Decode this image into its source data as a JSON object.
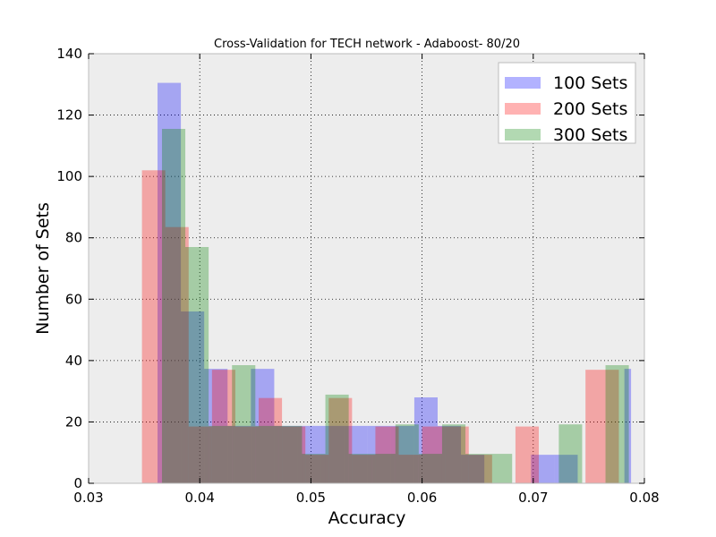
{
  "chart_data": {
    "type": "bar",
    "title": "Cross-Validation for TECH network - Adaboost- 80/20",
    "xlabel": "Accuracy",
    "ylabel": "Number of Sets",
    "xlim": [
      0.03,
      0.08
    ],
    "ylim": [
      0,
      140
    ],
    "x_ticks": [
      "0.03",
      "0.04",
      "0.05",
      "0.06",
      "0.07",
      "0.08"
    ],
    "y_ticks": [
      "0",
      "20",
      "40",
      "60",
      "80",
      "100",
      "120",
      "140"
    ],
    "grid": true,
    "legend_position": "top-right",
    "background_color": "#ededed",
    "series": [
      {
        "name": "100 Sets",
        "color": "#0000ff",
        "bins": [
          {
            "start": 0.0362,
            "end": 0.0383,
            "value": 130.5
          },
          {
            "start": 0.0383,
            "end": 0.0404,
            "value": 56
          },
          {
            "start": 0.0404,
            "end": 0.0425,
            "value": 37.3
          },
          {
            "start": 0.0425,
            "end": 0.0446,
            "value": 18.7
          },
          {
            "start": 0.0446,
            "end": 0.0467,
            "value": 37.3
          },
          {
            "start": 0.0467,
            "end": 0.0488,
            "value": 18.7
          },
          {
            "start": 0.0488,
            "end": 0.0509,
            "value": 18.7
          },
          {
            "start": 0.0509,
            "end": 0.053,
            "value": 18.7
          },
          {
            "start": 0.053,
            "end": 0.0551,
            "value": 18.7
          },
          {
            "start": 0.0551,
            "end": 0.0572,
            "value": 18.7
          },
          {
            "start": 0.0572,
            "end": 0.0593,
            "value": 18.7
          },
          {
            "start": 0.0593,
            "end": 0.0614,
            "value": 28
          },
          {
            "start": 0.0614,
            "end": 0.0635,
            "value": 18.7
          },
          {
            "start": 0.0635,
            "end": 0.0656,
            "value": 9.3
          },
          {
            "start": 0.0656,
            "end": 0.0677,
            "value": 0
          },
          {
            "start": 0.0677,
            "end": 0.0698,
            "value": 0
          },
          {
            "start": 0.0698,
            "end": 0.0719,
            "value": 9.3
          },
          {
            "start": 0.0719,
            "end": 0.074,
            "value": 9.3
          },
          {
            "start": 0.074,
            "end": 0.0761,
            "value": 0
          },
          {
            "start": 0.0761,
            "end": 0.0782,
            "value": 0
          },
          {
            "start": 0.0782,
            "end": 0.0788,
            "value": 37.3
          }
        ]
      },
      {
        "name": "200 Sets",
        "color": "#ff0000",
        "bins": [
          {
            "start": 0.0348,
            "end": 0.0369,
            "value": 102
          },
          {
            "start": 0.0369,
            "end": 0.039,
            "value": 83.5
          },
          {
            "start": 0.039,
            "end": 0.0411,
            "value": 18.5
          },
          {
            "start": 0.0411,
            "end": 0.0432,
            "value": 37
          },
          {
            "start": 0.0432,
            "end": 0.0453,
            "value": 18.5
          },
          {
            "start": 0.0453,
            "end": 0.0474,
            "value": 27.8
          },
          {
            "start": 0.0474,
            "end": 0.0495,
            "value": 18.5
          },
          {
            "start": 0.0495,
            "end": 0.0516,
            "value": 9.3
          },
          {
            "start": 0.0516,
            "end": 0.0537,
            "value": 27.8
          },
          {
            "start": 0.0537,
            "end": 0.0558,
            "value": 9.3
          },
          {
            "start": 0.0558,
            "end": 0.0579,
            "value": 18.5
          },
          {
            "start": 0.0579,
            "end": 0.06,
            "value": 9.3
          },
          {
            "start": 0.06,
            "end": 0.0621,
            "value": 18.5
          },
          {
            "start": 0.0621,
            "end": 0.0642,
            "value": 18.5
          },
          {
            "start": 0.0642,
            "end": 0.0663,
            "value": 9.3
          },
          {
            "start": 0.0663,
            "end": 0.0684,
            "value": 0
          },
          {
            "start": 0.0684,
            "end": 0.0705,
            "value": 18.5
          },
          {
            "start": 0.0705,
            "end": 0.0726,
            "value": 0
          },
          {
            "start": 0.0726,
            "end": 0.0747,
            "value": 0
          },
          {
            "start": 0.0747,
            "end": 0.0768,
            "value": 37
          },
          {
            "start": 0.0768,
            "end": 0.0777,
            "value": 37
          }
        ]
      },
      {
        "name": "300 Sets",
        "color": "#008000",
        "bins": [
          {
            "start": 0.0366,
            "end": 0.0387,
            "value": 115.5
          },
          {
            "start": 0.0387,
            "end": 0.0408,
            "value": 77
          },
          {
            "start": 0.0408,
            "end": 0.0429,
            "value": 18.7
          },
          {
            "start": 0.0429,
            "end": 0.045,
            "value": 38.5
          },
          {
            "start": 0.045,
            "end": 0.0471,
            "value": 18.7
          },
          {
            "start": 0.0471,
            "end": 0.0492,
            "value": 18.7
          },
          {
            "start": 0.0492,
            "end": 0.0513,
            "value": 9.6
          },
          {
            "start": 0.0513,
            "end": 0.0534,
            "value": 28.9
          },
          {
            "start": 0.0534,
            "end": 0.0555,
            "value": 9.6
          },
          {
            "start": 0.0555,
            "end": 0.0576,
            "value": 9.6
          },
          {
            "start": 0.0576,
            "end": 0.0597,
            "value": 19.2
          },
          {
            "start": 0.0597,
            "end": 0.0618,
            "value": 9.6
          },
          {
            "start": 0.0618,
            "end": 0.0639,
            "value": 19.2
          },
          {
            "start": 0.0639,
            "end": 0.066,
            "value": 9.6
          },
          {
            "start": 0.066,
            "end": 0.0681,
            "value": 9.6
          },
          {
            "start": 0.0681,
            "end": 0.0702,
            "value": 0
          },
          {
            "start": 0.0702,
            "end": 0.0723,
            "value": 0
          },
          {
            "start": 0.0723,
            "end": 0.0744,
            "value": 19.2
          },
          {
            "start": 0.0744,
            "end": 0.0765,
            "value": 0
          },
          {
            "start": 0.0765,
            "end": 0.0786,
            "value": 38.5
          }
        ]
      }
    ]
  }
}
